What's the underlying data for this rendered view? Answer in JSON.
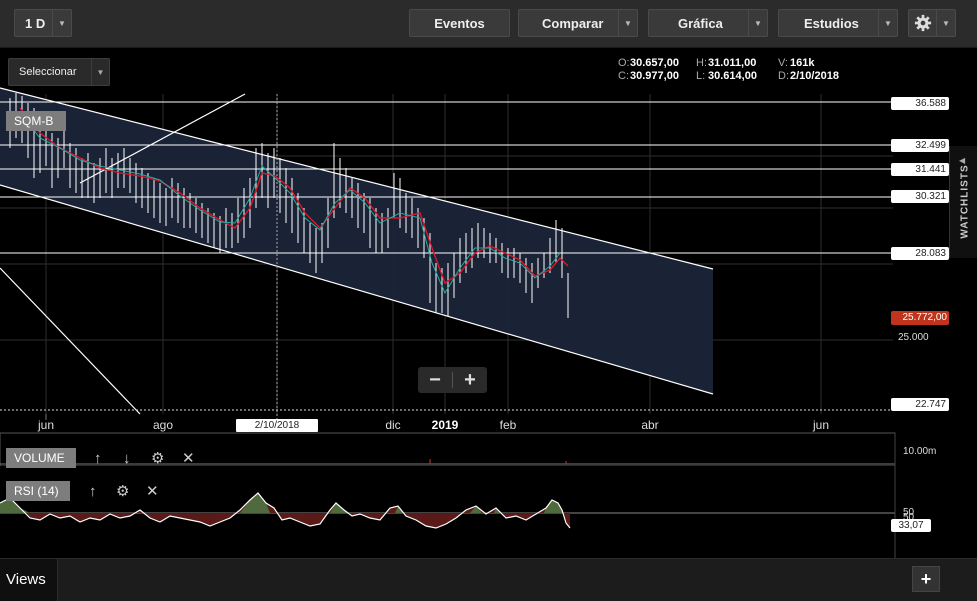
{
  "toolbar": {
    "interval": "1 D",
    "eventos": "Eventos",
    "comparar": "Comparar",
    "grafica": "Gráfica",
    "estudios": "Estudios"
  },
  "selector": {
    "label": "Seleccionar"
  },
  "ohlc": {
    "open_key": "O:",
    "open": "30.657,00",
    "high_key": "H:",
    "high": "31.011,00",
    "vol_key": "V:",
    "vol": "161k",
    "close_key": "C:",
    "close": "30.977,00",
    "low_key": "L:",
    "low": "30.614,00",
    "date_key": "D:",
    "date": "2/10/2018"
  },
  "watchlists": {
    "label": "WATCHLISTS"
  },
  "symbol": {
    "label": "SQM-B"
  },
  "price_axis": {
    "labels": [
      "36.588",
      "32.499",
      "31.441",
      "30.321",
      "28.083",
      "25.772,00",
      "25.000",
      "22.747"
    ],
    "last_price_color": "#c0341d"
  },
  "x_axis": {
    "labels": [
      "jun",
      "ago",
      "dic",
      "2019",
      "feb",
      "abr",
      "jun"
    ],
    "crosshair_date": "2/10/2018"
  },
  "volume": {
    "label": "VOLUME",
    "axis": "10.00m"
  },
  "rsi": {
    "label": "RSI (14)",
    "axis_top": "50",
    "axis_bottom": "50",
    "value": "33,07"
  },
  "bottom": {
    "views": "Views",
    "add": "+"
  },
  "colors": {
    "channel_fill": "#1b2438",
    "price_line": "#ffffff",
    "ma_red": "#d9182a",
    "ma_teal": "#2aa9a0",
    "rsi_green": "#4f6a3c",
    "rsi_red": "#5a1a17"
  }
}
